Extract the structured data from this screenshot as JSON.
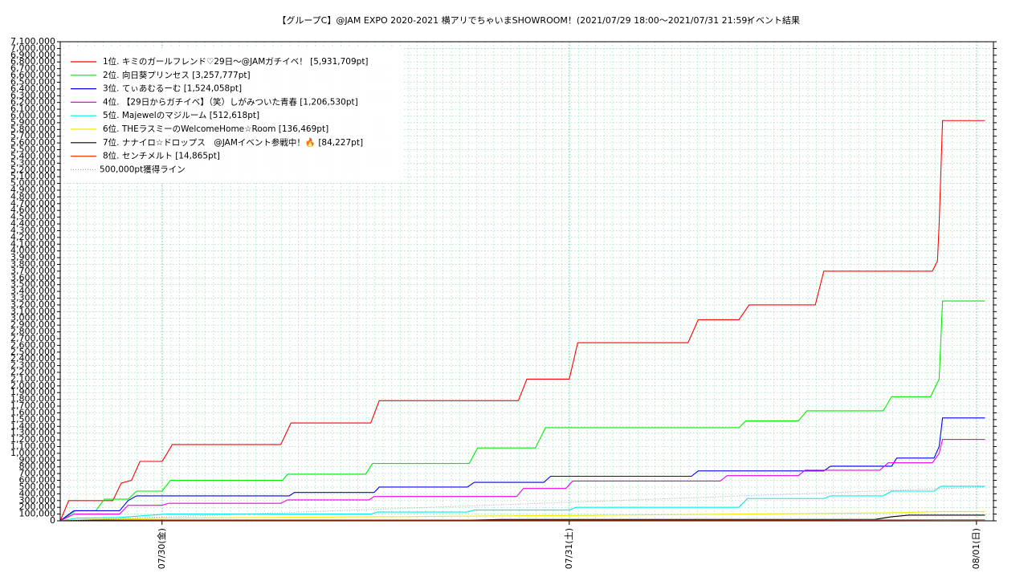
{
  "chart_data": {
    "type": "line",
    "title": "【グループC】@JAM EXPO 2020-2021 横アリでちゃいまSHOWROOM！(2021/07/29 18:00〜2021/07/31 21:59)",
    "subtitle": "イベント結果",
    "xlim": [
      18,
      73
    ],
    "xticks": [
      {
        "value": 24,
        "label": "07/30(金)"
      },
      {
        "value": 48,
        "label": "07/31(土)"
      },
      {
        "value": 72,
        "label": "08/01(日)"
      }
    ],
    "ylim": [
      0,
      7100000
    ],
    "yticks": [
      0,
      {
        "value": 100000,
        "label": "100,000"
      },
      {
        "value": 200000,
        "label": "200,000"
      },
      {
        "value": 300000,
        "label": "300,000"
      },
      {
        "value": 400000,
        "label": "400,000"
      },
      {
        "value": 500000,
        "label": "500,000"
      },
      {
        "value": 600000,
        "label": "600,000"
      },
      {
        "value": 700000,
        "label": "700,000"
      },
      {
        "value": 800000,
        "label": "800,000"
      },
      {
        "value": 900000,
        "label": "900,000"
      },
      {
        "value": 1000000,
        "label": "1,000,000"
      },
      {
        "value": 1100000,
        "label": "1,100,000"
      },
      {
        "value": 1200000,
        "label": "1,200,000"
      },
      {
        "value": 1300000,
        "label": "1,300,000"
      },
      {
        "value": 1400000,
        "label": "1,400,000"
      },
      {
        "value": 1500000,
        "label": "1,500,000"
      },
      {
        "value": 1600000,
        "label": "1,600,000"
      },
      {
        "value": 1700000,
        "label": "1,700,000"
      },
      {
        "value": 1800000,
        "label": "1,800,000"
      },
      {
        "value": 1900000,
        "label": "1,900,000"
      },
      {
        "value": 2000000,
        "label": "2,000,000"
      },
      {
        "value": 2100000,
        "label": "2,100,000"
      },
      {
        "value": 2200000,
        "label": "2,200,000"
      },
      {
        "value": 2300000,
        "label": "2,300,000"
      },
      {
        "value": 2400000,
        "label": "2,400,000"
      },
      {
        "value": 2500000,
        "label": "2,500,000"
      },
      {
        "value": 2600000,
        "label": "2,600,000"
      },
      {
        "value": 2700000,
        "label": "2,700,000"
      },
      {
        "value": 2800000,
        "label": "2,800,000"
      },
      {
        "value": 2900000,
        "label": "2,900,000"
      },
      {
        "value": 3000000,
        "label": "3,000,000"
      },
      {
        "value": 3100000,
        "label": "3,100,000"
      },
      {
        "value": 3200000,
        "label": "3,200,000"
      },
      {
        "value": 3300000,
        "label": "3,300,000"
      },
      {
        "value": 3400000,
        "label": "3,400,000"
      },
      {
        "value": 3500000,
        "label": "3,500,000"
      },
      {
        "value": 3600000,
        "label": "3,600,000"
      },
      {
        "value": 3700000,
        "label": "3,700,000"
      },
      {
        "value": 3800000,
        "label": "3,800,000"
      },
      {
        "value": 3900000,
        "label": "3,900,000"
      },
      {
        "value": 4000000,
        "label": "4,000,000"
      },
      {
        "value": 4100000,
        "label": "4,100,000"
      },
      {
        "value": 4200000,
        "label": "4,200,000"
      },
      {
        "value": 4300000,
        "label": "4,300,000"
      },
      {
        "value": 4400000,
        "label": "4,400,000"
      },
      {
        "value": 4500000,
        "label": "4,500,000"
      },
      {
        "value": 4600000,
        "label": "4,600,000"
      },
      {
        "value": 4700000,
        "label": "4,700,000"
      },
      {
        "value": 4800000,
        "label": "4,800,000"
      },
      {
        "value": 4900000,
        "label": "4,900,000"
      },
      {
        "value": 5000000,
        "label": "5,000,000"
      },
      {
        "value": 5100000,
        "label": "5,100,000"
      },
      {
        "value": 5200000,
        "label": "5,200,000"
      },
      {
        "value": 5300000,
        "label": "5,300,000"
      },
      {
        "value": 5400000,
        "label": "5,400,000"
      },
      {
        "value": 5500000,
        "label": "5,500,000"
      },
      {
        "value": 5600000,
        "label": "5,600,000"
      },
      {
        "value": 5700000,
        "label": "5,700,000"
      },
      {
        "value": 5800000,
        "label": "5,800,000"
      },
      {
        "value": 5900000,
        "label": "5,900,000"
      },
      {
        "value": 6000000,
        "label": "6,000,000"
      },
      {
        "value": 6100000,
        "label": "6,100,000"
      },
      {
        "value": 6200000,
        "label": "6,200,000"
      },
      {
        "value": 6300000,
        "label": "6,300,000"
      },
      {
        "value": 6400000,
        "label": "6,400,000"
      },
      {
        "value": 6500000,
        "label": "6,500,000"
      },
      {
        "value": 6600000,
        "label": "6,600,000"
      },
      {
        "value": 6700000,
        "label": "6,700,000"
      },
      {
        "value": 6800000,
        "label": "6,800,000"
      },
      {
        "value": 6900000,
        "label": "6,900,000"
      },
      {
        "value": 7000000,
        "label": "7,000,000"
      },
      {
        "value": 7100000,
        "label": "7,100,000"
      }
    ],
    "grid": true,
    "legend": "top-left",
    "series": [
      {
        "name": "1位. キミのガールフレンド♡29日〜@JAMガチイベ！ [5,931,709pt]",
        "color": "#ff0000",
        "x": [
          18,
          18.5,
          21.1,
          21.6,
          22.2,
          22.7,
          24,
          24.3,
          24.6,
          31,
          31.6,
          36.3,
          36.8,
          45,
          45.5,
          48,
          48.5,
          55,
          55.6,
          58,
          58.6,
          62.5,
          63,
          69.4,
          69.7,
          69.8,
          70,
          72.5
        ],
        "values": [
          0,
          300000,
          300000,
          560000,
          600000,
          880000,
          880000,
          1000000,
          1130000,
          1130000,
          1450000,
          1450000,
          1780000,
          1780000,
          2100000,
          2100000,
          2640000,
          2640000,
          2980000,
          2980000,
          3200000,
          3200000,
          3700000,
          3700000,
          3850000,
          4400000,
          5931709,
          5931709
        ]
      },
      {
        "name": "2位. 向日葵プリンセス [3,257,777pt]",
        "color": "#00ee00",
        "x": [
          18,
          18.9,
          20.1,
          20.6,
          22,
          22.5,
          24,
          24.5,
          31.1,
          31.4,
          36,
          36.4,
          42.1,
          42.6,
          46,
          46.6,
          58,
          58.4,
          61.5,
          62,
          66.5,
          67,
          69.3,
          69.8,
          70,
          72.5
        ],
        "values": [
          0,
          150000,
          150000,
          320000,
          320000,
          440000,
          440000,
          600000,
          600000,
          690000,
          690000,
          850000,
          850000,
          1080000,
          1080000,
          1380000,
          1380000,
          1480000,
          1480000,
          1630000,
          1630000,
          1840000,
          1840000,
          2100000,
          3257777,
          3257777
        ]
      },
      {
        "name": "3位. てぃあむるーむ [1,524,058pt]",
        "color": "#0000ee",
        "x": [
          18,
          18.8,
          21.5,
          22,
          22.5,
          31.5,
          31.8,
          36.5,
          36.8,
          42,
          42.4,
          46.5,
          46.9,
          55.2,
          55.6,
          63,
          63.4,
          67,
          67.3,
          69.5,
          69.8,
          70,
          72.5
        ],
        "values": [
          0,
          150000,
          150000,
          300000,
          370000,
          370000,
          420000,
          420000,
          500000,
          500000,
          570000,
          570000,
          660000,
          660000,
          740000,
          740000,
          810000,
          810000,
          930000,
          930000,
          1100000,
          1524058,
          1524058
        ]
      },
      {
        "name": "4位. 【29日からガチイベ】（笑）しがみついた青春 [1,206,530pt]",
        "color": "#ee00ee",
        "x": [
          18,
          18.8,
          21.5,
          22,
          24,
          24.4,
          31,
          31.4,
          36.2,
          36.5,
          44.9,
          45.3,
          47.8,
          48.2,
          56.9,
          57.3,
          61.5,
          61.9,
          66.3,
          66.8,
          69.4,
          69.8,
          70,
          72.5
        ],
        "values": [
          0,
          100000,
          100000,
          230000,
          230000,
          260000,
          260000,
          310000,
          310000,
          360000,
          360000,
          480000,
          480000,
          590000,
          590000,
          670000,
          670000,
          750000,
          750000,
          860000,
          860000,
          1000000,
          1206530,
          1206530
        ]
      },
      {
        "name": "5位. Majewelのマジルーム [512,618pt]",
        "color": "#00eeee",
        "x": [
          18,
          19,
          21.5,
          24.3,
          36.3,
          36.7,
          42,
          42.4,
          48,
          48.4,
          58,
          58.5,
          63,
          63.4,
          66.5,
          67,
          69.5,
          69.9,
          72.5
        ],
        "values": [
          0,
          40000,
          50000,
          100000,
          100000,
          130000,
          130000,
          160000,
          160000,
          200000,
          200000,
          330000,
          330000,
          370000,
          370000,
          440000,
          440000,
          512618,
          512618
        ]
      },
      {
        "name": "6位. THEラスミーのWelcomeHome☆Room [136,469pt]",
        "color": "#eeee00",
        "x": [
          18,
          19.5,
          24.3,
          36.5,
          48.3,
          58.3,
          67,
          70,
          72.5
        ],
        "values": [
          0,
          20000,
          40000,
          60000,
          80000,
          100000,
          120000,
          136469,
          136469
        ]
      },
      {
        "name": "7位. ナナイロ☆ドロップス　@JAMイベント参戦中！🔥 [84,227pt]",
        "color": "#000000",
        "x": [
          18,
          20,
          42,
          44,
          66,
          67,
          68,
          72.5
        ],
        "values": [
          0,
          10000,
          10000,
          20000,
          20000,
          60000,
          84227,
          84227
        ]
      },
      {
        "name": "8位. センチメルト [14,865pt]",
        "color": "#ee4400",
        "x": [
          18,
          24,
          48,
          70,
          72.5
        ],
        "values": [
          0,
          5000,
          10000,
          14865,
          14865
        ]
      },
      {
        "name": "500,000pt獲得ライン",
        "color": "#aaaaaa",
        "style": "dotted",
        "x": [
          18,
          72.5
        ],
        "values": [
          0,
          500000
        ]
      }
    ]
  }
}
